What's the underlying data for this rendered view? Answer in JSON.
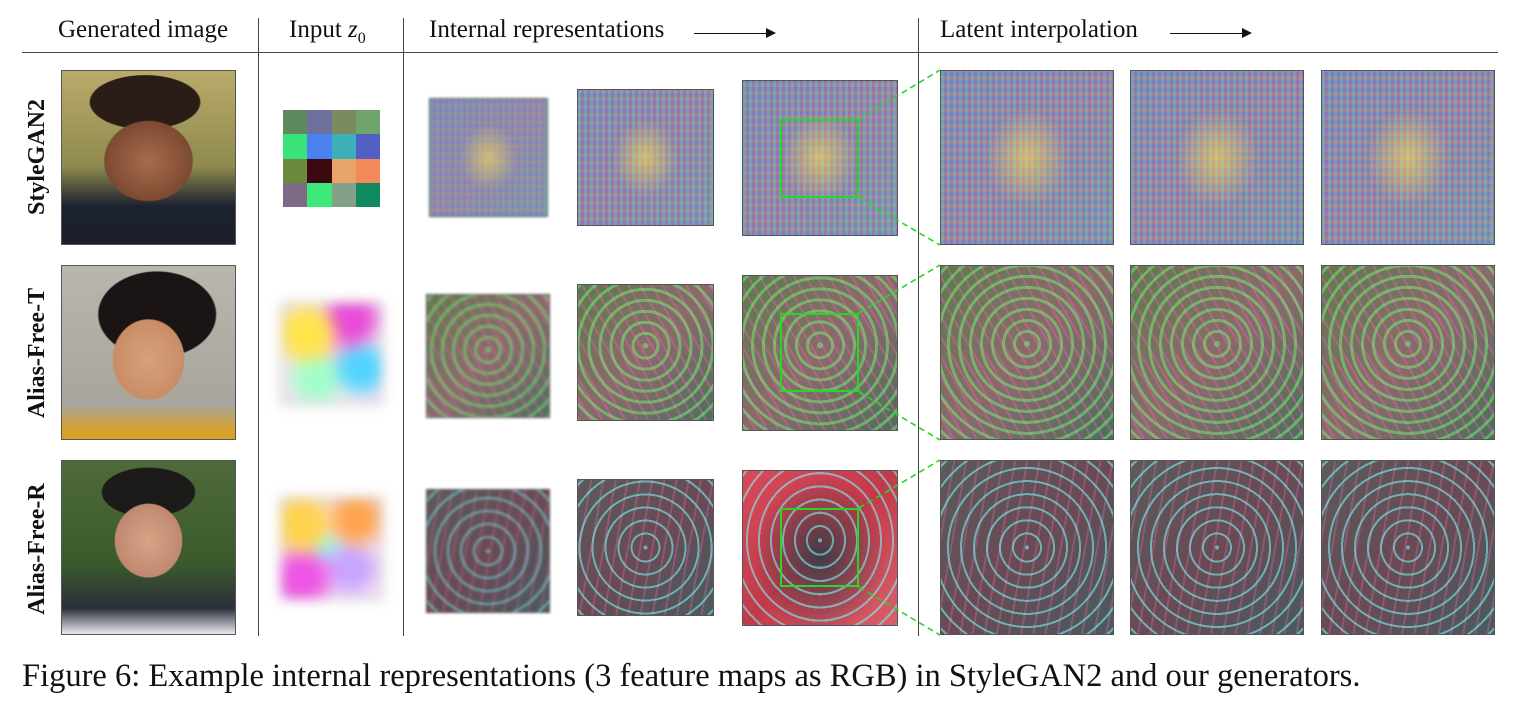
{
  "headers": {
    "generated_image": "Generated image",
    "input_prefix": "Input ",
    "input_symbol": "z",
    "input_subscript": "0",
    "internal_representations": "Internal representations",
    "latent_interpolation": "Latent interpolation"
  },
  "rows": [
    "StyleGAN2",
    "Alias-Free-T",
    "Alias-Free-R"
  ],
  "input_grid_colors": [
    "#5f8a5e",
    "#6d6f9c",
    "#7c8a62",
    "#6fa46a",
    "#39e37a",
    "#4b82f0",
    "#3cb0b8",
    "#5260c4",
    "#6b8a3c",
    "#3a0a10",
    "#e8a46a",
    "#f48a5a",
    "#7c6a86",
    "#3de87a",
    "#84a086",
    "#0f8a5e"
  ],
  "accent_color": "#23d923",
  "caption": "Figure 6: Example internal representations (3 feature maps as RGB) in StyleGAN2 and our generators."
}
